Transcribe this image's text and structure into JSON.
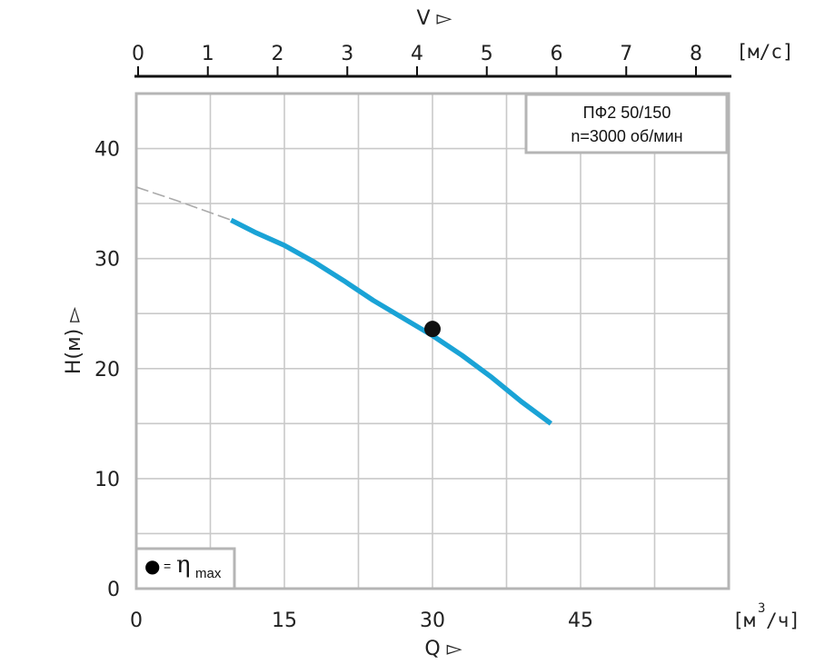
{
  "chart_data": {
    "type": "line",
    "info_box": [
      "ПФ2 50/150",
      "n=3000 об/мин"
    ],
    "x_axis": {
      "label": "Q ▻",
      "unit_base": "[м",
      "unit_sup": "3",
      "unit_tail": "/ч]",
      "range": [
        0,
        60
      ],
      "ticks": [
        0,
        15,
        30,
        45
      ],
      "gridlines": [
        0,
        7.5,
        15,
        22.5,
        30,
        37.5,
        45,
        52.5,
        60
      ]
    },
    "x2_axis": {
      "label": "V ▻",
      "unit": "[м/с]",
      "range": [
        0,
        8.5
      ],
      "ticks": [
        0,
        1,
        2,
        3,
        4,
        5,
        6,
        7,
        8
      ]
    },
    "y_axis": {
      "label": "H(м) ▻",
      "range": [
        0,
        45
      ],
      "ticks": [
        0,
        10,
        20,
        30,
        40
      ],
      "gridlines": [
        0,
        5,
        10,
        15,
        20,
        25,
        30,
        35,
        40,
        45
      ]
    },
    "series": [
      {
        "color": "#1aa3d6",
        "points": [
          [
            9.6,
            33.5
          ],
          [
            12,
            32.4
          ],
          [
            15,
            31.2
          ],
          [
            18,
            29.7
          ],
          [
            21,
            28.0
          ],
          [
            24,
            26.2
          ],
          [
            27,
            24.6
          ],
          [
            30,
            23.0
          ],
          [
            33,
            21.2
          ],
          [
            36,
            19.2
          ],
          [
            39,
            17.0
          ],
          [
            42,
            15.0
          ]
        ]
      }
    ],
    "extrapolation": {
      "color": "#aaaaaa",
      "points": [
        [
          0,
          36.5
        ],
        [
          4,
          35.3
        ],
        [
          9.6,
          33.5
        ]
      ]
    },
    "best_efficiency_point": {
      "x": 30,
      "y": 23.6
    },
    "legend": {
      "placement": "bottom-left",
      "marker": "●",
      "equals": "=",
      "symbol": "η",
      "subscript": "max"
    },
    "grid": true
  }
}
